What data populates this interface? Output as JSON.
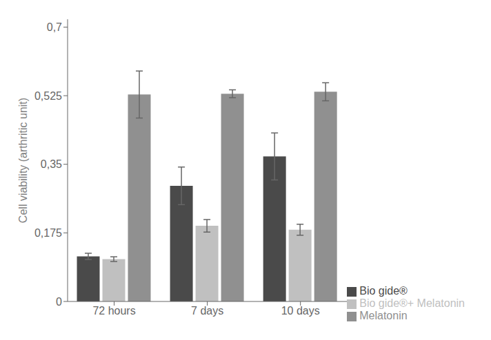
{
  "chart_data": {
    "type": "bar",
    "categories": [
      "72 hours",
      "7 days",
      "10 days"
    ],
    "series": [
      {
        "name": "Bio gide®",
        "color": "#4a4a4a",
        "values": [
          0.115,
          0.295,
          0.37
        ],
        "errors": [
          0.008,
          0.048,
          0.06
        ]
      },
      {
        "name": "Bio gide®+ Melatonin",
        "color": "#c0c0c0",
        "values": [
          0.108,
          0.193,
          0.183
        ],
        "errors": [
          0.006,
          0.016,
          0.014
        ]
      },
      {
        "name": "Melatonin",
        "color": "#909090",
        "values": [
          0.528,
          0.53,
          0.535
        ],
        "errors": [
          0.06,
          0.01,
          0.023
        ]
      }
    ],
    "ylabel": "Cell viability (arthritic unit)",
    "ylim": [
      0,
      0.72
    ],
    "yticks": [
      0,
      {
        "value": 0.175,
        "label": "0,175"
      },
      {
        "value": 0.35,
        "label": "0,35"
      },
      {
        "value": 0.525,
        "label": "0,525"
      },
      {
        "value": 0.7,
        "label": "0,7"
      }
    ],
    "grid": false,
    "legend": "lower right"
  }
}
